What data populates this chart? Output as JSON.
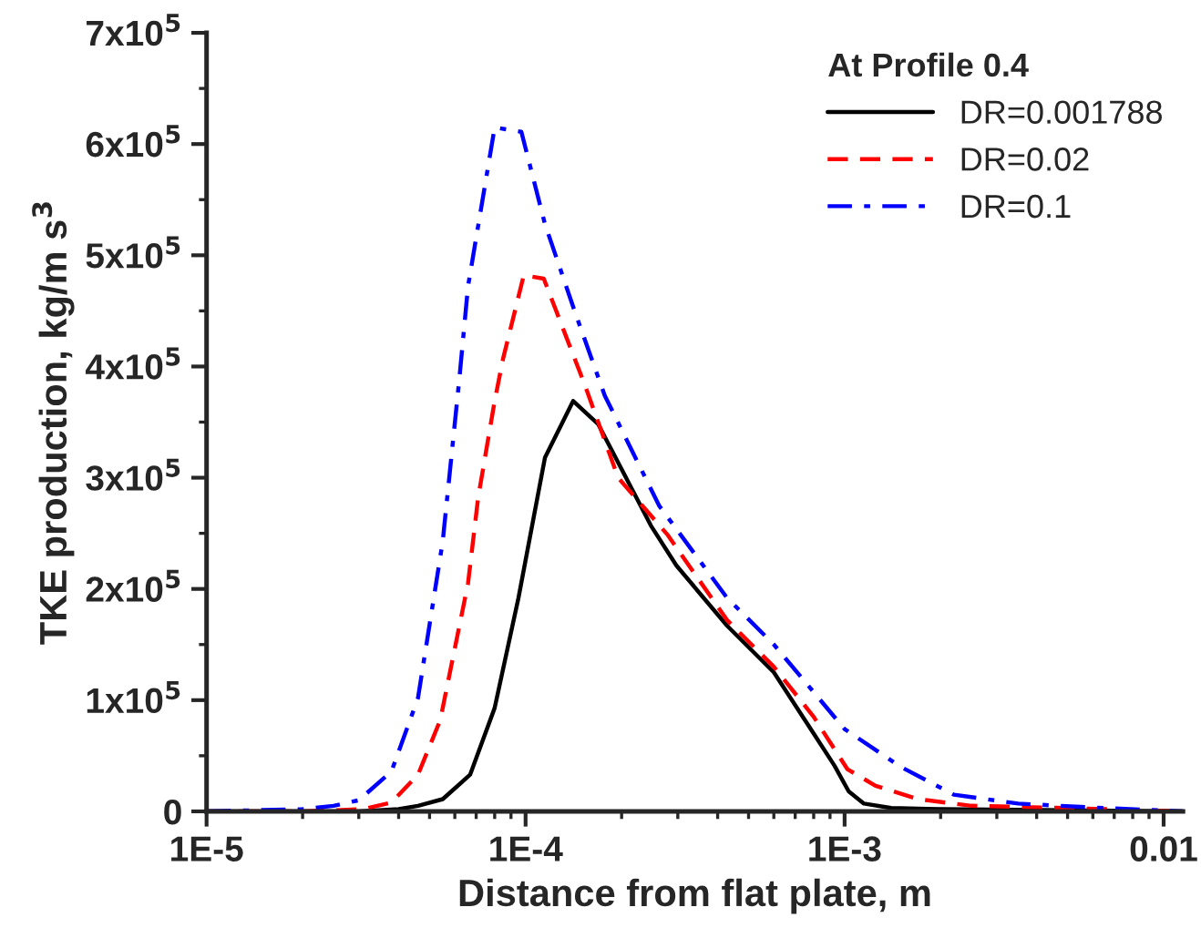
{
  "chart_data": {
    "type": "line",
    "xlabel": "Distance from flat plate, m",
    "ylabel": "TKE production, kg/m s$^{3}$",
    "legend_title": "At Profile 0.4",
    "log": "x",
    "grid": false,
    "legend": "top right",
    "xlim": [
      1e-05,
      0.0115
    ],
    "xticks": [
      {
        "value": 1e-05,
        "label": "1E-5"
      },
      {
        "value": 0.0001,
        "label": "1E-4"
      },
      {
        "value": 0.001,
        "label": "1E-3"
      },
      0.01
    ],
    "ylim": [
      0,
      700000
    ],
    "yticks": [
      0,
      {
        "value": 100000,
        "label": "1x10$^{5}$"
      },
      {
        "value": 200000,
        "label": "2x10$^{5}$"
      },
      {
        "value": 300000,
        "label": "3x10$^{5}$"
      },
      {
        "value": 400000,
        "label": "4x10$^{5}$"
      },
      {
        "value": 500000,
        "label": "5x10$^{5}$"
      },
      {
        "value": 600000,
        "label": "6x10$^{5}$"
      },
      {
        "value": 700000,
        "label": "7x10$^{5}$"
      }
    ],
    "series": [
      {
        "name": "DR=0.001788",
        "color": "#000000",
        "line_style": "solid",
        "x": [
          1e-05,
          2e-05,
          3e-05,
          4e-05,
          4.6e-05,
          5.5e-05,
          6.7e-05,
          8e-05,
          9.5e-05,
          0.000115,
          0.000141,
          0.000169,
          0.000247,
          0.000297,
          0.000428,
          0.0006,
          0.0008,
          0.00093,
          0.00103,
          0.00115,
          0.0014,
          0.002,
          0.005,
          0.0115
        ],
        "values": [
          0,
          0,
          0,
          2000,
          5000,
          11000,
          33000,
          93000,
          192000,
          318000,
          369000,
          348000,
          257000,
          221000,
          167000,
          125000,
          70000,
          41000,
          18000,
          7000,
          3000,
          2000,
          1000,
          0
        ]
      },
      {
        "name": "DR=0.02",
        "color": "#ff0000",
        "line_style": "dashed",
        "x": [
          1e-05,
          2e-05,
          3.1e-05,
          3.8e-05,
          4.6e-05,
          5.4e-05,
          6.6e-05,
          7.1e-05,
          8e-05,
          8.5e-05,
          9.87e-05,
          0.000114,
          0.000154,
          0.000195,
          0.000278,
          0.000428,
          0.0006,
          0.0008,
          0.00102,
          0.00125,
          0.0017,
          0.0025,
          0.005,
          0.0115
        ],
        "values": [
          0,
          0,
          2000,
          8000,
          33000,
          82000,
          205000,
          282000,
          369000,
          407000,
          482000,
          479000,
          382000,
          300000,
          249000,
          172000,
          130000,
          85000,
          38000,
          23000,
          11000,
          5000,
          3000,
          0
        ]
      },
      {
        "name": "DR=0.1",
        "color": "#0000ff",
        "line_style": "dashdot",
        "x": [
          1e-05,
          2e-05,
          2.5e-05,
          3e-05,
          3.8e-05,
          4.6e-05,
          5.5e-05,
          6.2e-05,
          6.6e-05,
          8e-05,
          9.7e-05,
          0.000115,
          0.000144,
          0.000177,
          0.000262,
          0.000428,
          0.0006,
          0.001,
          0.0015,
          0.0022,
          0.0035,
          0.0055,
          0.0115
        ],
        "values": [
          0,
          2000,
          5000,
          10000,
          36000,
          102000,
          243000,
          389000,
          472000,
          615000,
          611000,
          528000,
          446000,
          374000,
          275000,
          192000,
          150000,
          74000,
          40000,
          15000,
          7000,
          4000,
          0
        ]
      }
    ]
  }
}
